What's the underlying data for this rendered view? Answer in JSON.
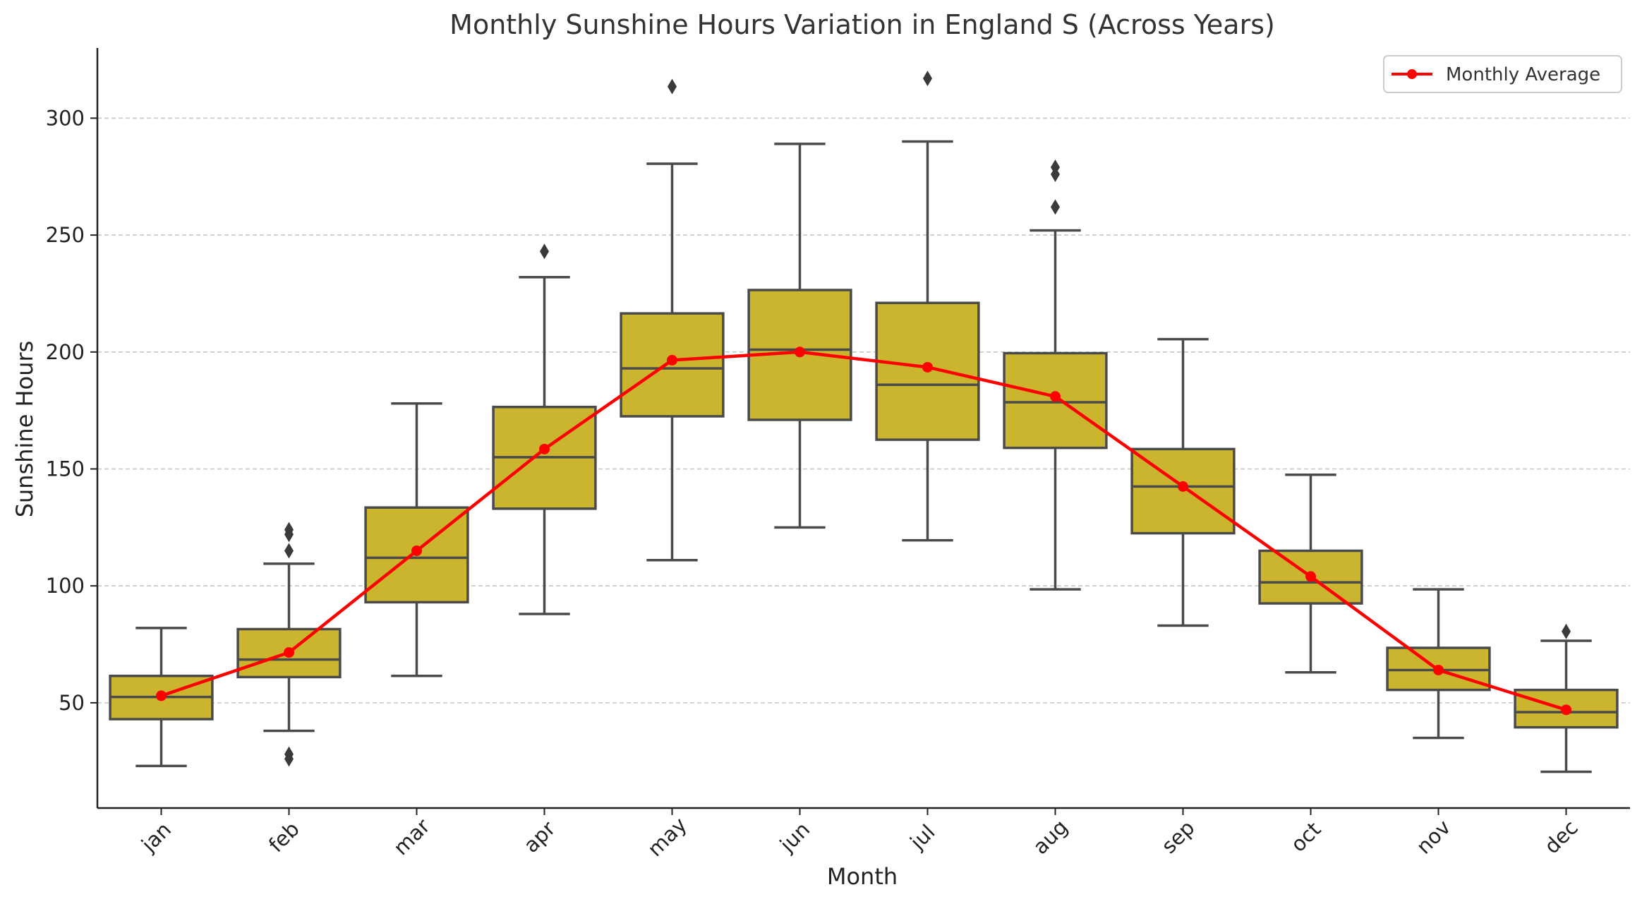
{
  "chart_data": {
    "type": "box",
    "title": "Monthly Sunshine Hours Variation in England S (Across Years)",
    "xlabel": "Month",
    "ylabel": "Sunshine Hours",
    "ylim": [
      5,
      330
    ],
    "yticks": [
      50,
      100,
      150,
      200,
      250,
      300
    ],
    "grid": "y-dashed",
    "legend_position": "top-right",
    "categories": [
      "jan",
      "feb",
      "mar",
      "apr",
      "may",
      "jun",
      "jul",
      "aug",
      "sep",
      "oct",
      "nov",
      "dec"
    ],
    "box_stats": [
      {
        "month": "jan",
        "whisker_low": 23,
        "q1": 43,
        "median": 52.5,
        "q3": 61.5,
        "whisker_high": 82,
        "outliers": []
      },
      {
        "month": "feb",
        "whisker_low": 38,
        "q1": 61,
        "median": 68.5,
        "q3": 81.5,
        "whisker_high": 109.5,
        "outliers": [
          26,
          28,
          115,
          122,
          124
        ]
      },
      {
        "month": "mar",
        "whisker_low": 61.5,
        "q1": 93,
        "median": 112,
        "q3": 133.5,
        "whisker_high": 178,
        "outliers": []
      },
      {
        "month": "apr",
        "whisker_low": 88,
        "q1": 133,
        "median": 155,
        "q3": 176.5,
        "whisker_high": 232,
        "outliers": [
          243
        ]
      },
      {
        "month": "may",
        "whisker_low": 111,
        "q1": 172.5,
        "median": 193,
        "q3": 216.5,
        "whisker_high": 280.5,
        "outliers": [
          313.5
        ]
      },
      {
        "month": "jun",
        "whisker_low": 125,
        "q1": 171,
        "median": 201,
        "q3": 226.5,
        "whisker_high": 289,
        "outliers": []
      },
      {
        "month": "jul",
        "whisker_low": 119.5,
        "q1": 162.5,
        "median": 186,
        "q3": 221,
        "whisker_high": 290,
        "outliers": [
          317
        ]
      },
      {
        "month": "aug",
        "whisker_low": 98.5,
        "q1": 159,
        "median": 178.5,
        "q3": 199.5,
        "whisker_high": 252,
        "outliers": [
          262,
          276,
          279
        ]
      },
      {
        "month": "sep",
        "whisker_low": 83,
        "q1": 122.5,
        "median": 142.5,
        "q3": 158.5,
        "whisker_high": 205.5,
        "outliers": []
      },
      {
        "month": "oct",
        "whisker_low": 63,
        "q1": 92.5,
        "median": 101.5,
        "q3": 115,
        "whisker_high": 147.5,
        "outliers": []
      },
      {
        "month": "nov",
        "whisker_low": 35,
        "q1": 55.5,
        "median": 64,
        "q3": 73.5,
        "whisker_high": 98.5,
        "outliers": []
      },
      {
        "month": "dec",
        "whisker_low": 20.5,
        "q1": 39.5,
        "median": 46,
        "q3": 55.5,
        "whisker_high": 76.5,
        "outliers": [
          80.5
        ]
      }
    ],
    "series": [
      {
        "name": "Monthly Average",
        "type": "line",
        "values": [
          53,
          71.5,
          115,
          158.5,
          196.5,
          200,
          193.5,
          181,
          142.5,
          104,
          64,
          47
        ]
      }
    ],
    "colors": {
      "box_fill": "#cbb52f",
      "box_edge": "#4a4a4a",
      "line": "#ff0000",
      "grid": "#c8c8c8",
      "axis": "#222222",
      "text": "#333333"
    }
  }
}
